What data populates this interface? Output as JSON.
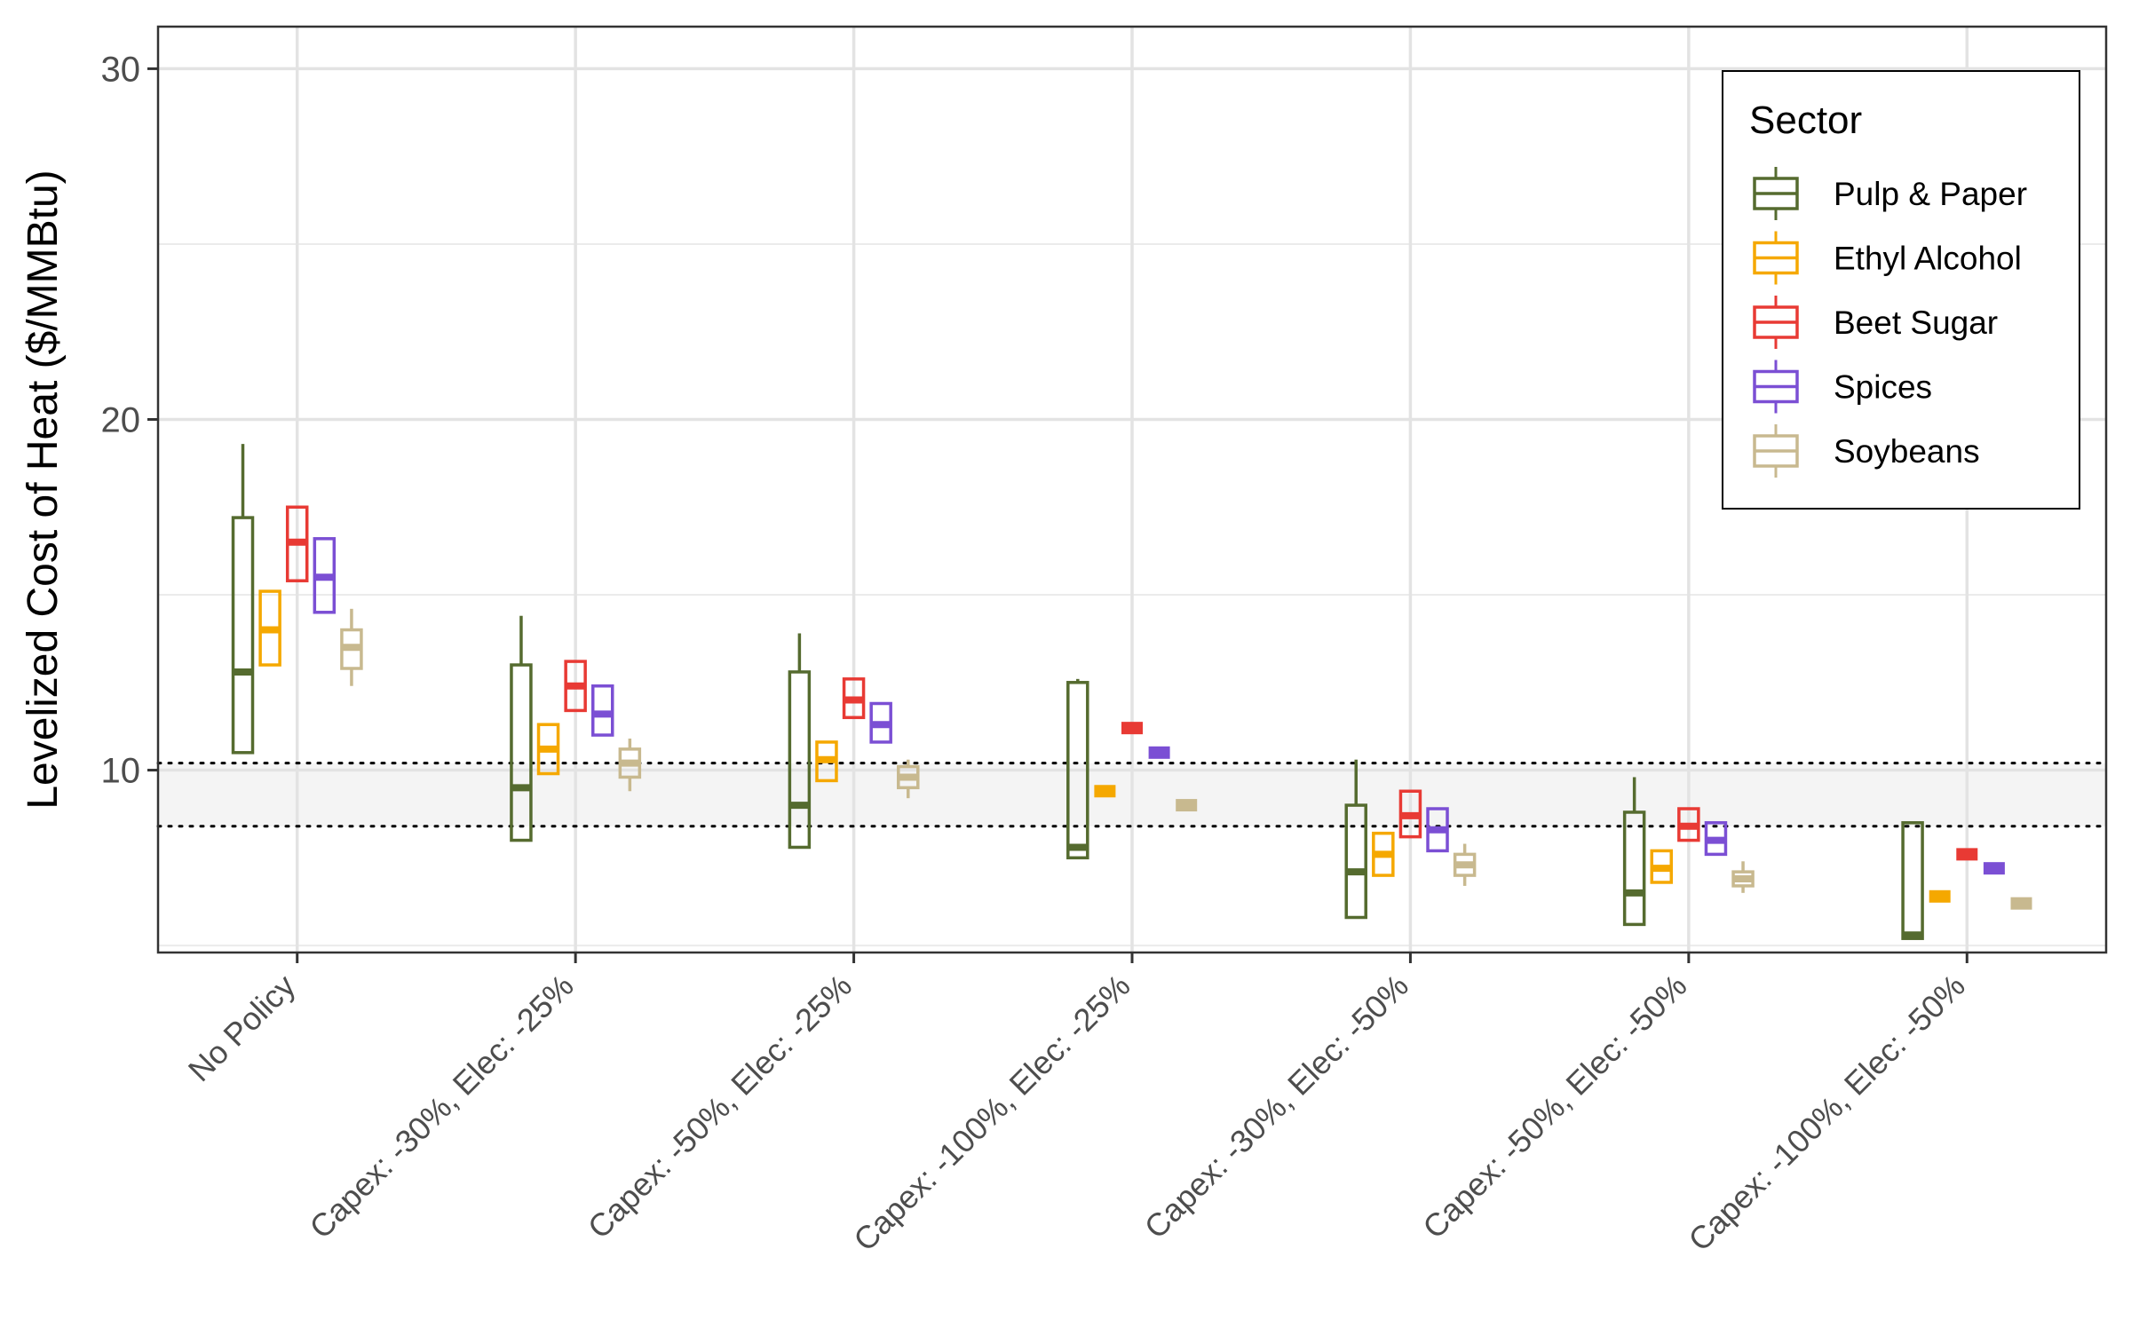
{
  "chart_data": {
    "type": "boxplot",
    "title": "",
    "xlabel": "",
    "ylabel": "Levelized Cost of Heat ($/MMBtu)",
    "ylim": [
      4.8,
      31.2
    ],
    "yticks": [
      10,
      20,
      30
    ],
    "grid": true,
    "legend_position": "top-right",
    "legend_title": "Sector",
    "categories": [
      "No Policy",
      "Capex: -30%, Elec: -25%",
      "Capex: -50%, Elec: -25%",
      "Capex: -100%, Elec: -25%",
      "Capex: -30%, Elec: -50%",
      "Capex: -50%, Elec: -50%",
      "Capex: -100%, Elec: -50%"
    ],
    "reference_band": {
      "low": 8.4,
      "high": 10.2
    },
    "series": [
      {
        "name": "Pulp & Paper",
        "color": "#556b2f",
        "boxes": [
          {
            "min": 10.5,
            "q1": 10.5,
            "median": 12.8,
            "q3": 17.2,
            "max": 19.3
          },
          {
            "min": 8.0,
            "q1": 8.0,
            "median": 9.5,
            "q3": 13.0,
            "max": 14.4
          },
          {
            "min": 7.8,
            "q1": 7.8,
            "median": 9.0,
            "q3": 12.8,
            "max": 13.9
          },
          {
            "min": 7.5,
            "q1": 7.5,
            "median": 7.8,
            "q3": 12.5,
            "max": 12.6
          },
          {
            "min": 5.8,
            "q1": 5.8,
            "median": 7.1,
            "q3": 9.0,
            "max": 10.3
          },
          {
            "min": 5.6,
            "q1": 5.6,
            "median": 6.5,
            "q3": 8.8,
            "max": 9.8
          },
          {
            "min": 5.2,
            "q1": 5.2,
            "median": 5.3,
            "q3": 8.5,
            "max": 8.5
          }
        ]
      },
      {
        "name": "Ethyl Alcohol",
        "color": "#f5a800",
        "boxes": [
          {
            "min": 13.0,
            "q1": 13.0,
            "median": 14.0,
            "q3": 15.1,
            "max": 15.1
          },
          {
            "min": 9.9,
            "q1": 9.9,
            "median": 10.6,
            "q3": 11.3,
            "max": 11.3
          },
          {
            "min": 9.7,
            "q1": 9.7,
            "median": 10.3,
            "q3": 10.8,
            "max": 10.8
          },
          {
            "min": 9.3,
            "q1": 9.3,
            "median": 9.4,
            "q3": 9.5,
            "max": 9.5
          },
          {
            "min": 7.0,
            "q1": 7.0,
            "median": 7.6,
            "q3": 8.2,
            "max": 8.2
          },
          {
            "min": 6.8,
            "q1": 6.8,
            "median": 7.2,
            "q3": 7.7,
            "max": 7.7
          },
          {
            "min": 6.3,
            "q1": 6.3,
            "median": 6.4,
            "q3": 6.4,
            "max": 6.4
          }
        ]
      },
      {
        "name": "Beet Sugar",
        "color": "#e83a34",
        "boxes": [
          {
            "min": 15.4,
            "q1": 15.4,
            "median": 16.5,
            "q3": 17.5,
            "max": 17.5
          },
          {
            "min": 11.7,
            "q1": 11.7,
            "median": 12.4,
            "q3": 13.1,
            "max": 13.1
          },
          {
            "min": 11.5,
            "q1": 11.5,
            "median": 12.0,
            "q3": 12.6,
            "max": 12.6
          },
          {
            "min": 11.1,
            "q1": 11.1,
            "median": 11.2,
            "q3": 11.3,
            "max": 11.3
          },
          {
            "min": 8.1,
            "q1": 8.1,
            "median": 8.7,
            "q3": 9.4,
            "max": 9.4
          },
          {
            "min": 8.0,
            "q1": 8.0,
            "median": 8.4,
            "q3": 8.9,
            "max": 8.9
          },
          {
            "min": 7.5,
            "q1": 7.5,
            "median": 7.6,
            "q3": 7.6,
            "max": 7.6
          }
        ]
      },
      {
        "name": "Spices",
        "color": "#7b4fd4",
        "boxes": [
          {
            "min": 14.5,
            "q1": 14.5,
            "median": 15.5,
            "q3": 16.6,
            "max": 16.6
          },
          {
            "min": 11.0,
            "q1": 11.0,
            "median": 11.6,
            "q3": 12.4,
            "max": 12.4
          },
          {
            "min": 10.8,
            "q1": 10.8,
            "median": 11.3,
            "q3": 11.9,
            "max": 11.9
          },
          {
            "min": 10.4,
            "q1": 10.4,
            "median": 10.5,
            "q3": 10.6,
            "max": 10.6
          },
          {
            "min": 7.7,
            "q1": 7.7,
            "median": 8.3,
            "q3": 8.9,
            "max": 8.9
          },
          {
            "min": 7.6,
            "q1": 7.6,
            "median": 8.0,
            "q3": 8.5,
            "max": 8.5
          },
          {
            "min": 7.1,
            "q1": 7.1,
            "median": 7.2,
            "q3": 7.2,
            "max": 7.2
          }
        ]
      },
      {
        "name": "Soybeans",
        "color": "#c8b98f",
        "boxes": [
          {
            "min": 12.4,
            "q1": 12.9,
            "median": 13.5,
            "q3": 14.0,
            "max": 14.6
          },
          {
            "min": 9.4,
            "q1": 9.8,
            "median": 10.2,
            "q3": 10.6,
            "max": 10.9
          },
          {
            "min": 9.2,
            "q1": 9.5,
            "median": 9.8,
            "q3": 10.1,
            "max": 10.3
          },
          {
            "min": 8.9,
            "q1": 8.9,
            "median": 9.0,
            "q3": 9.0,
            "max": 9.0
          },
          {
            "min": 6.7,
            "q1": 7.0,
            "median": 7.3,
            "q3": 7.6,
            "max": 7.9
          },
          {
            "min": 6.5,
            "q1": 6.7,
            "median": 6.9,
            "q3": 7.1,
            "max": 7.4
          },
          {
            "min": 6.1,
            "q1": 6.1,
            "median": 6.2,
            "q3": 6.2,
            "max": 6.2
          }
        ]
      }
    ]
  }
}
